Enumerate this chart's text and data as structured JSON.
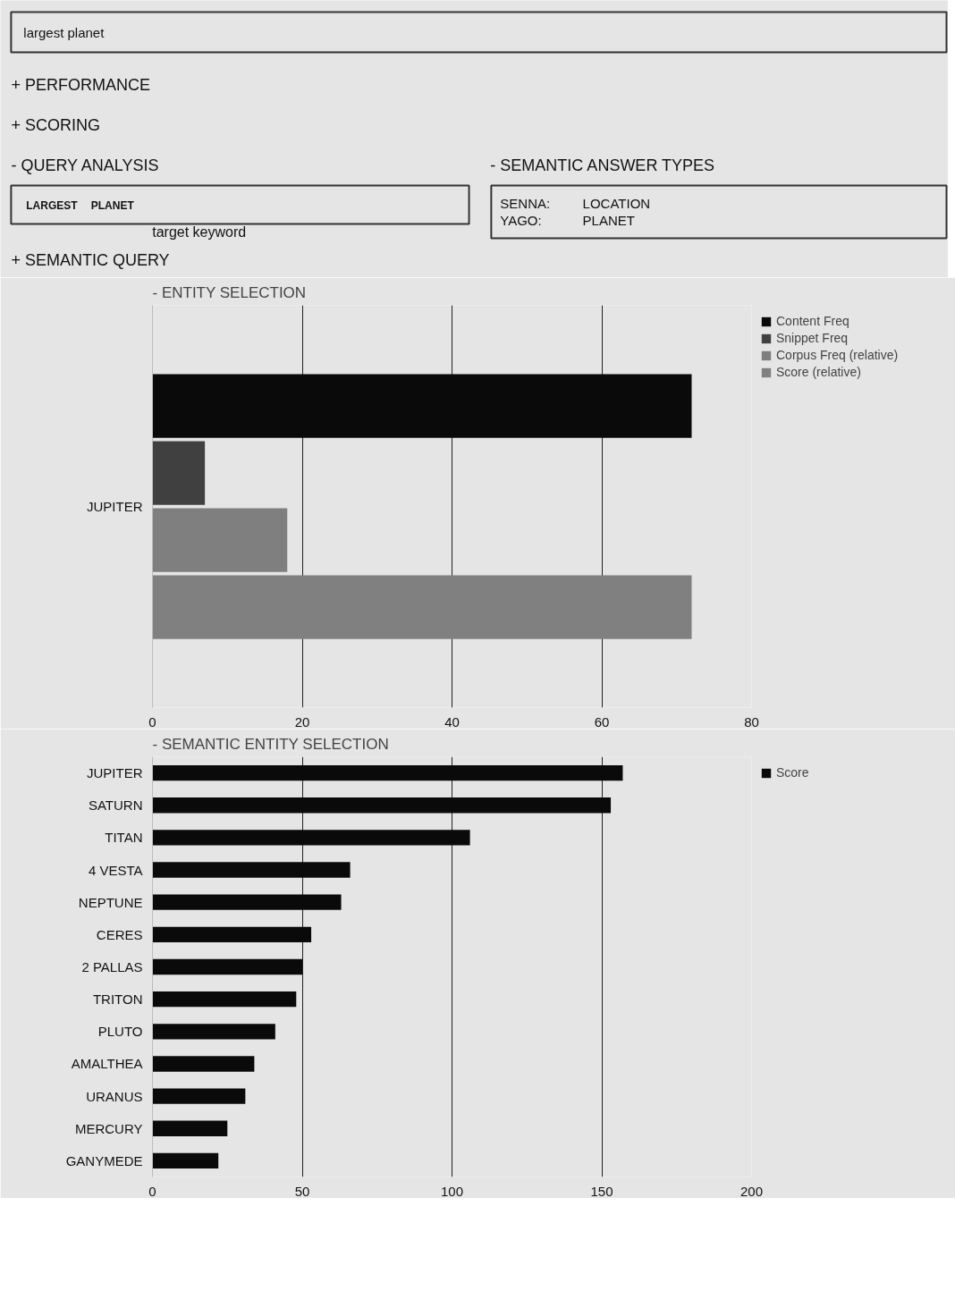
{
  "chart_data": [
    {
      "type": "other",
      "annotations": [
        "largest planet",
        "+ PERFORMANCE",
        "+ SCORING",
        "- QUERY ANALYSIS",
        "LARGEST",
        "PLANET",
        "target keyword",
        "- SEMANTIC ANSWER TYPES",
        "SENNA:",
        "LOCATION",
        "YAGO:",
        "PLANET",
        "+ SEMANTIC QUERY"
      ]
    },
    {
      "type": "bar",
      "orientation": "horizontal",
      "title": "- ENTITY SELECTION",
      "categories": [
        "JUPITER"
      ],
      "series": [
        {
          "name": "Content Freq",
          "color": "#0a0a0a",
          "values": [
            72
          ]
        },
        {
          "name": "Snippet Freq",
          "color": "#404040",
          "values": [
            7
          ]
        },
        {
          "name": "Corpus Freq (relative)",
          "color": "#7f7f7f",
          "values": [
            18
          ]
        },
        {
          "name": "Score (relative)",
          "color": "#808080",
          "values": [
            72
          ]
        }
      ],
      "xlim": [
        0,
        80
      ],
      "xticks": [
        0,
        20,
        40,
        60,
        80
      ],
      "grid": "x",
      "legend": "top right"
    },
    {
      "type": "bar",
      "orientation": "horizontal",
      "title": "- SEMANTIC ENTITY SELECTION",
      "categories": [
        "JUPITER",
        "SATURN",
        "TITAN",
        "4 VESTA",
        "NEPTUNE",
        "CERES",
        "2 PALLAS",
        "TRITON",
        "PLUTO",
        "AMALTHEA",
        "URANUS",
        "MERCURY",
        "GANYMEDE"
      ],
      "series": [
        {
          "name": "Score",
          "color": "#0a0a0a",
          "values": [
            157,
            153,
            106,
            66,
            63,
            53,
            50,
            48,
            41,
            34,
            31,
            25,
            22
          ]
        }
      ],
      "xlim": [
        0,
        200
      ],
      "xticks": [
        0,
        50,
        100,
        150,
        200
      ],
      "grid": "x",
      "legend": "top right"
    }
  ]
}
